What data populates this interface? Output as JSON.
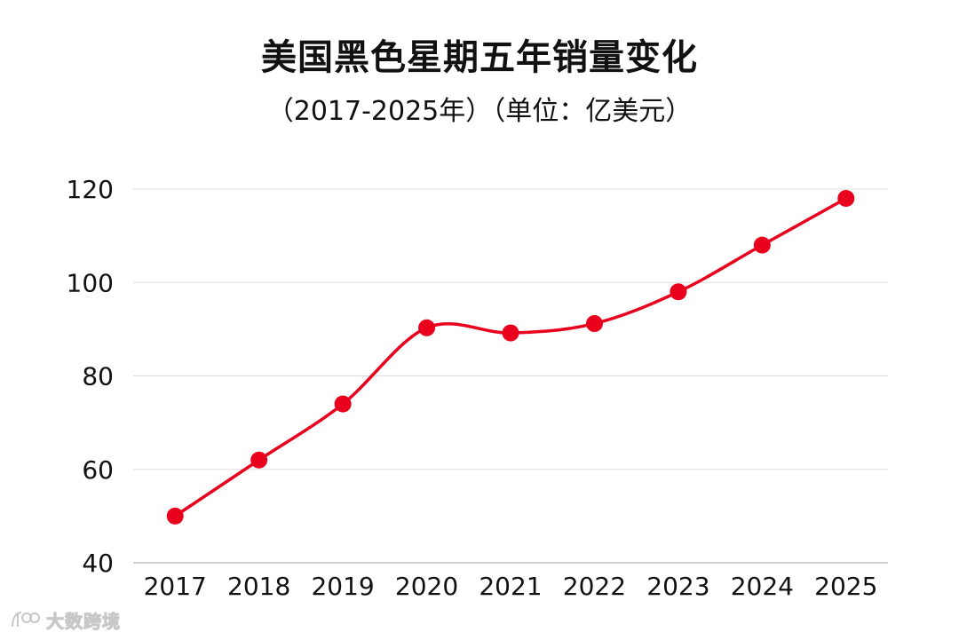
{
  "chart_data": {
    "type": "line",
    "title": "美国黑色星期五年销量变化",
    "subtitle": "（2017-2025年）（单位：亿美元）",
    "x": [
      "2017",
      "2018",
      "2019",
      "2020",
      "2021",
      "2022",
      "2023",
      "2024",
      "2025"
    ],
    "series": [
      {
        "values": [
          50.0,
          62.0,
          74.0,
          90.3,
          89.2,
          91.2,
          98.0,
          108.0,
          118.0
        ],
        "color": "#e8001c",
        "smooth": true,
        "markers": true
      }
    ],
    "ylim": [
      40,
      120
    ],
    "yticks": [
      40,
      60,
      80,
      100,
      120
    ],
    "grid": true,
    "legend": "none"
  },
  "watermark": {
    "text": "大数跨境",
    "icon": "logo-icon"
  }
}
